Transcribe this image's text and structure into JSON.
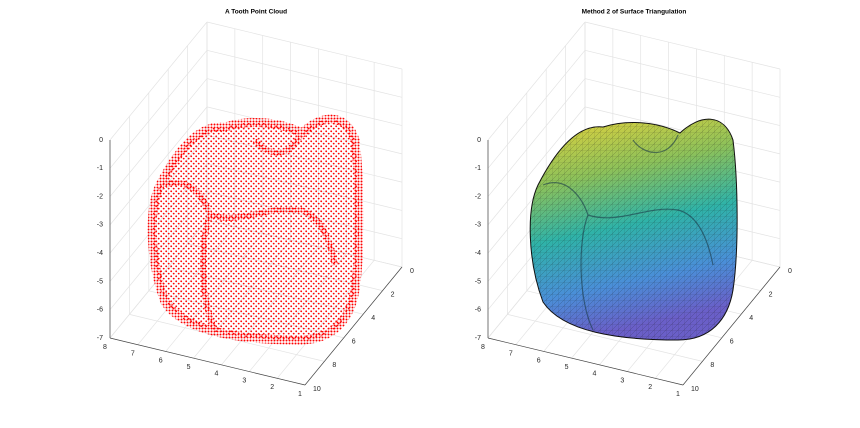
{
  "chart_data": [
    {
      "type": "scatter3d",
      "title": "A Tooth Point Cloud",
      "color": "#ff0000",
      "xlim": [
        1,
        8
      ],
      "xticks": [
        1,
        2,
        3,
        4,
        5,
        6,
        7,
        8
      ],
      "ylim": [
        0,
        10
      ],
      "yticks": [
        0,
        2,
        4,
        6,
        8,
        10
      ],
      "zlim": [
        -7,
        0
      ],
      "zticks": [
        -7,
        -6,
        -5,
        -4,
        -3,
        -2,
        -1,
        0
      ],
      "grid": true
    },
    {
      "type": "surface3d",
      "title": "Method 2 of Surface Triangulation",
      "xlim": [
        1,
        8
      ],
      "xticks": [
        1,
        2,
        3,
        4,
        5,
        6,
        7,
        8
      ],
      "ylim": [
        0,
        10
      ],
      "yticks": [
        0,
        2,
        4,
        6,
        8,
        10
      ],
      "zlim": [
        -7,
        0
      ],
      "zticks": [
        -7,
        -6,
        -5,
        -4,
        -3,
        -2,
        -1,
        0
      ],
      "grid": true
    }
  ]
}
